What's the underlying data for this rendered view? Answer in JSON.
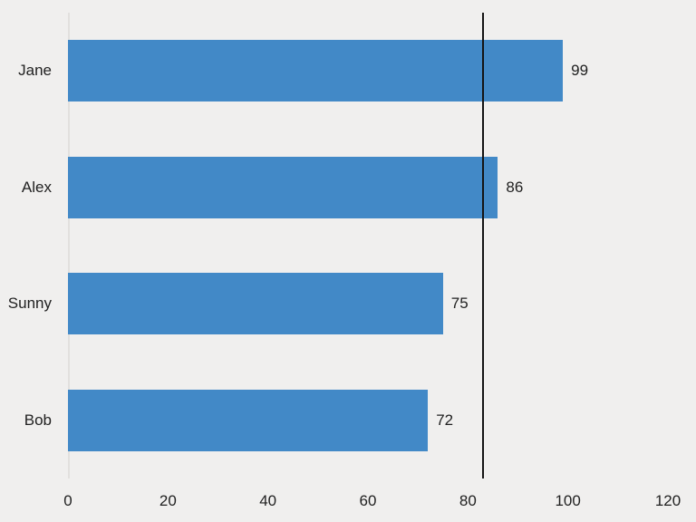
{
  "chart_data": {
    "type": "bar",
    "orientation": "horizontal",
    "title": "",
    "xlabel": "",
    "ylabel": "",
    "categories": [
      "Jane",
      "Alex",
      "Sunny",
      "Bob"
    ],
    "values": [
      99,
      86,
      75,
      72
    ],
    "data_labels": [
      "99",
      "86",
      "75",
      "72"
    ],
    "x_ticks": [
      0,
      20,
      40,
      60,
      80,
      100,
      120
    ],
    "xlim": [
      0,
      120
    ],
    "grid": false,
    "legend": false,
    "reference_line": {
      "value": 83,
      "orientation": "vertical",
      "note": "average of values"
    },
    "colors": {
      "bar": "#4289c7",
      "reference_line": "#141414",
      "text": "#212121",
      "background": "#f0efee",
      "zero_gridline": "#e2e0de"
    }
  }
}
